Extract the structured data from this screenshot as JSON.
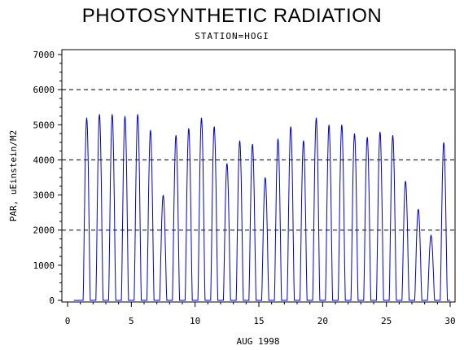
{
  "chart_data": {
    "type": "line",
    "title": "PHOTOSYNTHETIC RADIATION",
    "subtitle": "STATION=HOGI",
    "xlabel": "AUG 1998",
    "ylabel": "PAR, uEinstein/M2",
    "xlim": [
      0,
      30
    ],
    "ylim": [
      0,
      7000
    ],
    "x_ticks": [
      0,
      5,
      10,
      15,
      20,
      25,
      30
    ],
    "y_ticks": [
      0,
      1000,
      2000,
      3000,
      4000,
      5000,
      6000,
      7000
    ],
    "reference_lines": [
      2000,
      4000,
      6000
    ],
    "grid": false,
    "line_color": "#0000cc",
    "series": [
      {
        "daily_peaks": [
          {
            "day": 1,
            "peak": 5200
          },
          {
            "day": 2,
            "peak": 5300
          },
          {
            "day": 3,
            "peak": 5300
          },
          {
            "day": 4,
            "peak": 5250
          },
          {
            "day": 5,
            "peak": 5300
          },
          {
            "day": 6,
            "peak": 4850
          },
          {
            "day": 7,
            "peak": 3000
          },
          {
            "day": 8,
            "peak": 4700
          },
          {
            "day": 9,
            "peak": 4900
          },
          {
            "day": 10,
            "peak": 5200
          },
          {
            "day": 11,
            "peak": 4950
          },
          {
            "day": 12,
            "peak": 3900
          },
          {
            "day": 13,
            "peak": 4550
          },
          {
            "day": 14,
            "peak": 4450
          },
          {
            "day": 15,
            "peak": 3500
          },
          {
            "day": 16,
            "peak": 4600
          },
          {
            "day": 17,
            "peak": 4950
          },
          {
            "day": 18,
            "peak": 4550
          },
          {
            "day": 19,
            "peak": 5200
          },
          {
            "day": 20,
            "peak": 5000
          },
          {
            "day": 21,
            "peak": 5000
          },
          {
            "day": 22,
            "peak": 4750
          },
          {
            "day": 23,
            "peak": 4650
          },
          {
            "day": 24,
            "peak": 4800
          },
          {
            "day": 25,
            "peak": 4700
          },
          {
            "day": 26,
            "peak": 3400
          },
          {
            "day": 27,
            "peak": 2600
          },
          {
            "day": 28,
            "peak": 1850
          },
          {
            "day": 29,
            "peak": 4500
          }
        ]
      }
    ]
  }
}
